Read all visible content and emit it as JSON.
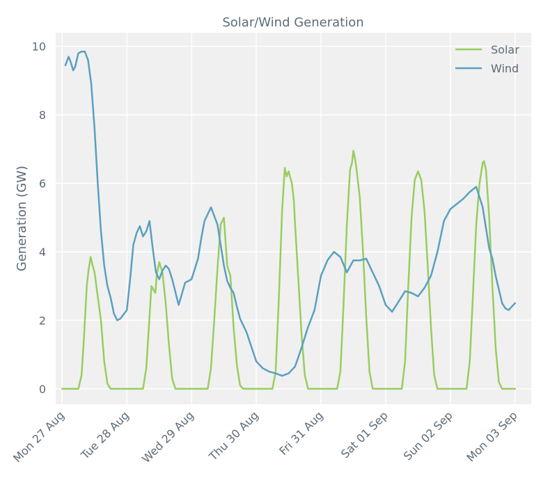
{
  "chart_data": {
    "type": "line",
    "title": "Solar/Wind Generation",
    "xlabel": "",
    "ylabel": "Generation (GW)",
    "xlim": [
      -0.1,
      7.25
    ],
    "ylim": [
      -0.45,
      10.4
    ],
    "yticks": [
      0,
      2,
      4,
      6,
      8,
      10
    ],
    "xticks": [
      {
        "x": 0,
        "label": "Mon 27 Aug"
      },
      {
        "x": 1,
        "label": "Tue 28 Aug"
      },
      {
        "x": 2,
        "label": "Wed 29 Aug"
      },
      {
        "x": 3,
        "label": "Thu 30 Aug"
      },
      {
        "x": 4,
        "label": "Fri 31 Aug"
      },
      {
        "x": 5,
        "label": "Sat 01 Sep"
      },
      {
        "x": 6,
        "label": "Sun 02 Sep"
      },
      {
        "x": 7,
        "label": "Mon 03 Sep"
      }
    ],
    "x_unit": "days since Mon 27 Aug",
    "grid": true,
    "legend_position": "top-right",
    "series": [
      {
        "name": "Solar",
        "color": "#98cd5f",
        "x": [
          0,
          0.25,
          0.3,
          0.34,
          0.38,
          0.41,
          0.44,
          0.47,
          0.5,
          0.55,
          0.6,
          0.65,
          0.7,
          0.75,
          0.8,
          1.0,
          1.25,
          1.3,
          1.34,
          1.38,
          1.44,
          1.46,
          1.5,
          1.55,
          1.6,
          1.65,
          1.7,
          1.75,
          1.8,
          2.0,
          2.25,
          2.3,
          2.35,
          2.4,
          2.45,
          2.5,
          2.55,
          2.6,
          2.65,
          2.7,
          2.75,
          2.8,
          3.0,
          3.25,
          3.3,
          3.35,
          3.4,
          3.44,
          3.47,
          3.5,
          3.55,
          3.58,
          3.6,
          3.65,
          3.7,
          3.75,
          3.8,
          4.0,
          4.25,
          4.3,
          4.35,
          4.4,
          4.45,
          4.48,
          4.5,
          4.53,
          4.55,
          4.6,
          4.65,
          4.7,
          4.75,
          4.8,
          5.0,
          5.25,
          5.3,
          5.35,
          5.4,
          5.45,
          5.5,
          5.55,
          5.6,
          5.65,
          5.7,
          5.75,
          5.8,
          6.0,
          6.25,
          6.3,
          6.35,
          6.4,
          6.45,
          6.5,
          6.52,
          6.55,
          6.6,
          6.65,
          6.7,
          6.75,
          6.8,
          7.0
        ],
        "values": [
          0,
          0,
          0.4,
          1.6,
          3.0,
          3.5,
          3.85,
          3.6,
          3.4,
          2.7,
          2.0,
          0.8,
          0.15,
          0,
          0,
          0,
          0,
          0.6,
          1.8,
          3.0,
          2.8,
          3.3,
          3.7,
          3.4,
          2.5,
          1.3,
          0.3,
          0,
          0,
          0,
          0,
          0.6,
          2.0,
          3.5,
          4.8,
          5.0,
          3.6,
          3.3,
          1.8,
          0.7,
          0.1,
          0,
          0,
          0,
          0.5,
          2.7,
          5.2,
          6.45,
          6.2,
          6.35,
          6.0,
          5.5,
          4.8,
          3.2,
          1.6,
          0.4,
          0,
          0,
          0,
          0.5,
          2.5,
          4.8,
          6.4,
          6.6,
          6.95,
          6.7,
          6.4,
          5.6,
          4.0,
          2.1,
          0.5,
          0,
          0,
          0,
          0.8,
          3.0,
          5.0,
          6.1,
          6.35,
          6.1,
          5.2,
          3.6,
          1.8,
          0.4,
          0,
          0,
          0,
          0.8,
          2.8,
          4.8,
          6.0,
          6.6,
          6.65,
          6.4,
          5.0,
          3.0,
          1.2,
          0.2,
          0,
          0
        ]
      },
      {
        "name": "Wind",
        "color": "#5a9fc1",
        "x": [
          0.05,
          0.1,
          0.13,
          0.17,
          0.2,
          0.25,
          0.3,
          0.35,
          0.4,
          0.45,
          0.5,
          0.55,
          0.6,
          0.65,
          0.7,
          0.75,
          0.8,
          0.85,
          0.9,
          1.0,
          1.05,
          1.1,
          1.15,
          1.2,
          1.25,
          1.3,
          1.35,
          1.4,
          1.45,
          1.5,
          1.55,
          1.6,
          1.65,
          1.7,
          1.8,
          1.9,
          2.0,
          2.05,
          2.1,
          2.15,
          2.2,
          2.3,
          2.4,
          2.5,
          2.55,
          2.6,
          2.65,
          2.7,
          2.75,
          2.8,
          2.85,
          3.0,
          3.1,
          3.2,
          3.3,
          3.4,
          3.5,
          3.6,
          3.7,
          3.8,
          3.9,
          4.0,
          4.1,
          4.2,
          4.3,
          4.4,
          4.5,
          4.6,
          4.7,
          4.8,
          4.9,
          5.0,
          5.1,
          5.2,
          5.3,
          5.4,
          5.5,
          5.6,
          5.7,
          5.8,
          5.9,
          6.0,
          6.1,
          6.2,
          6.3,
          6.4,
          6.5,
          6.6,
          6.65,
          6.7,
          6.75,
          6.8,
          6.85,
          6.9,
          6.95,
          7.0
        ],
        "values": [
          9.45,
          9.7,
          9.55,
          9.3,
          9.4,
          9.8,
          9.85,
          9.85,
          9.6,
          8.9,
          7.6,
          6.0,
          4.6,
          3.6,
          3.0,
          2.65,
          2.2,
          2.0,
          2.05,
          2.3,
          3.2,
          4.2,
          4.55,
          4.75,
          4.45,
          4.6,
          4.9,
          4.1,
          3.4,
          3.2,
          3.45,
          3.6,
          3.5,
          3.2,
          2.45,
          3.1,
          3.2,
          3.5,
          3.8,
          4.4,
          4.9,
          5.3,
          4.8,
          3.6,
          3.15,
          2.95,
          2.8,
          2.4,
          2.05,
          1.85,
          1.65,
          0.8,
          0.6,
          0.5,
          0.45,
          0.38,
          0.45,
          0.65,
          1.2,
          1.8,
          2.3,
          3.3,
          3.75,
          4.0,
          3.85,
          3.4,
          3.75,
          3.75,
          3.8,
          3.4,
          3.0,
          2.45,
          2.25,
          2.55,
          2.85,
          2.8,
          2.7,
          2.95,
          3.3,
          4.0,
          4.9,
          5.25,
          5.4,
          5.55,
          5.75,
          5.9,
          5.3,
          4.1,
          3.8,
          3.3,
          2.9,
          2.5,
          2.35,
          2.3,
          2.4,
          2.5
        ]
      }
    ]
  }
}
